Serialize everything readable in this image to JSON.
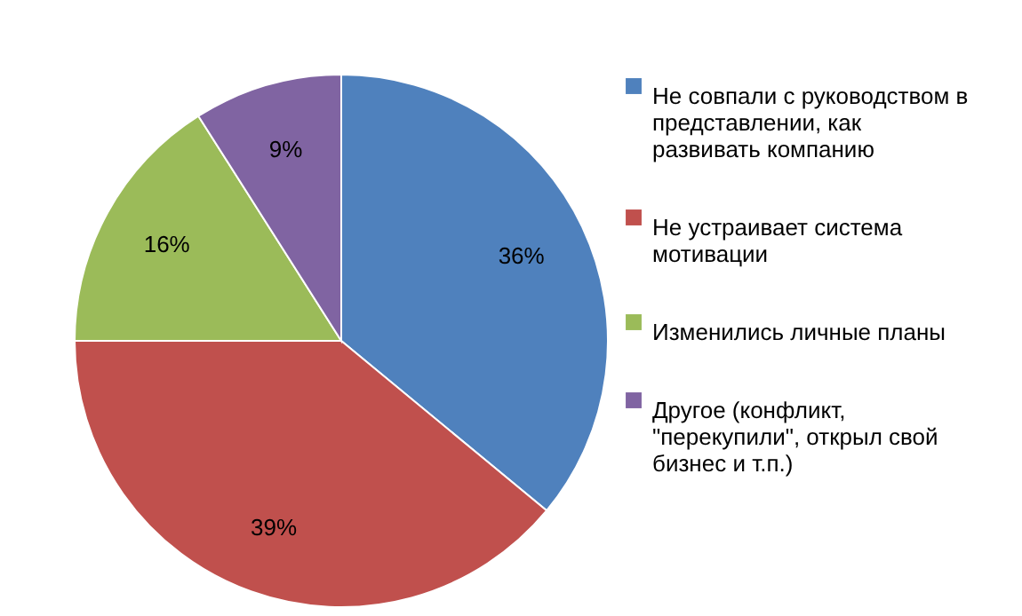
{
  "chart_data": {
    "type": "pie",
    "categories": [
      "Не совпали с руководством в представлении, как развивать компанию",
      "Не устраивает система мотивации",
      "Изменились личные планы",
      "Другое (конфликт, \"перекупили\", открыл свой бизнес и т.п.)"
    ],
    "values": [
      36,
      39,
      16,
      9
    ],
    "colors": [
      "#4f81bd",
      "#c0504d",
      "#9bbb59",
      "#8064a2"
    ],
    "value_labels": [
      "36%",
      "39%",
      "16%",
      "9%"
    ],
    "legend": "right"
  }
}
